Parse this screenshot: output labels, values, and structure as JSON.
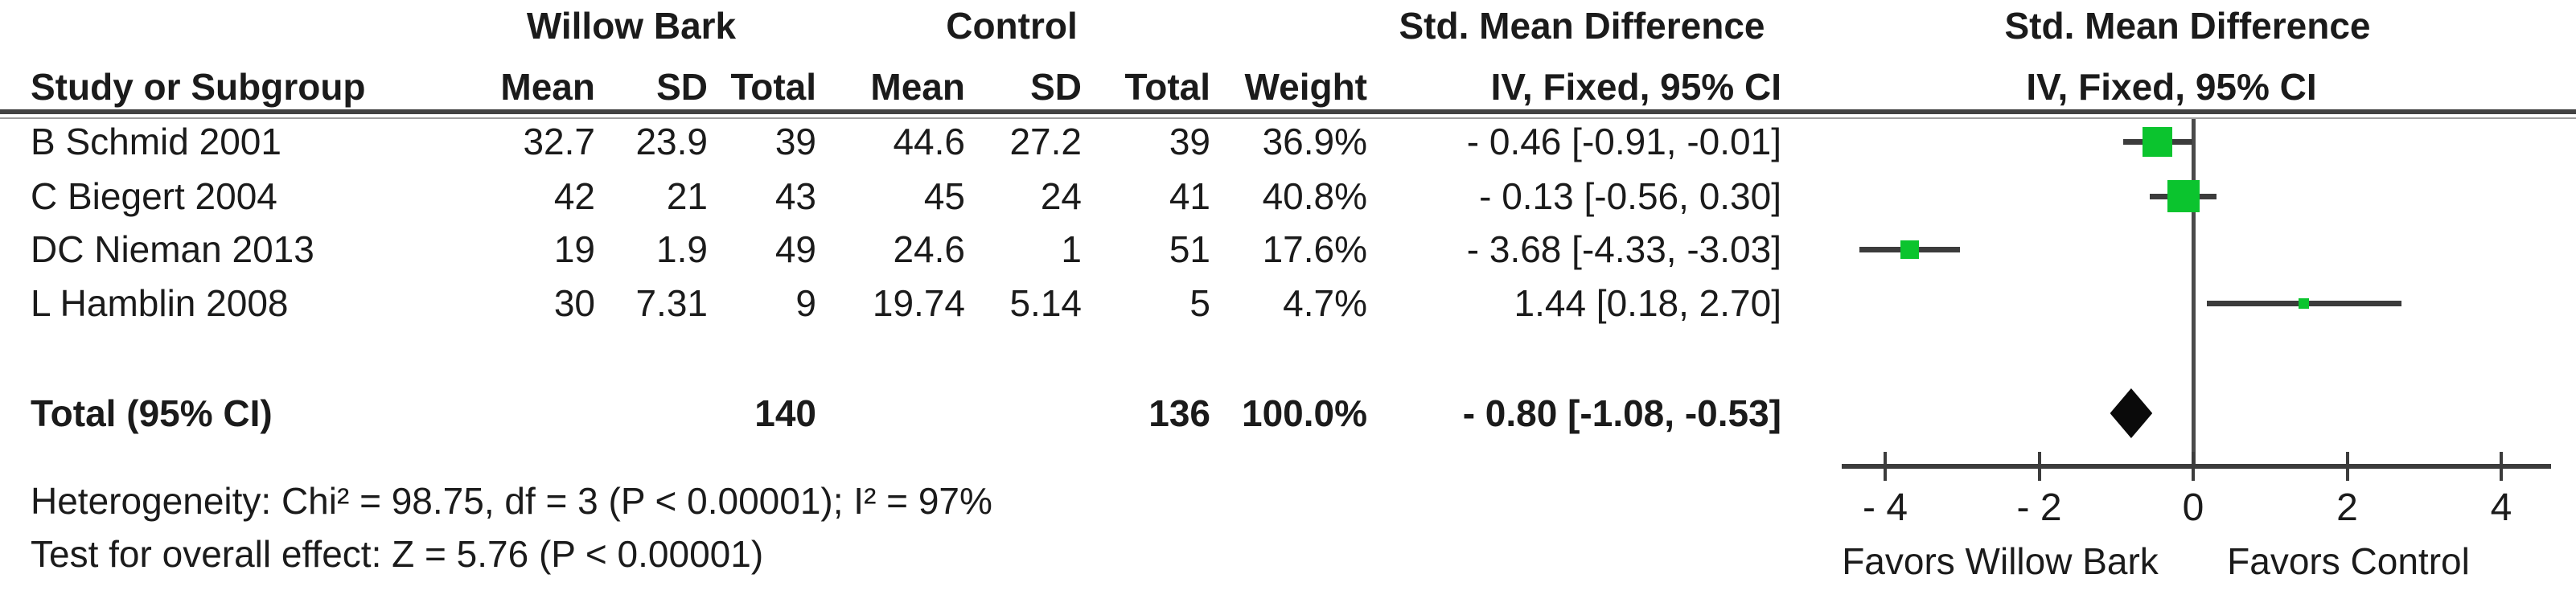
{
  "colors": {
    "effect_square": "#0bc42e",
    "line": "#3c3c3c",
    "zero_line": "#4a4a4a",
    "diamond": "#0a0a0a",
    "text": "#1b1b1b"
  },
  "chart_data": {
    "type": "forest",
    "headers": {
      "group_treatment": "Willow Bark",
      "group_control": "Control",
      "smd_text_col": "Std. Mean Difference",
      "smd_plot_col": "Std. Mean Difference",
      "study": "Study or Subgroup",
      "mean": "Mean",
      "sd": "SD",
      "total": "Total",
      "weight": "Weight",
      "ci_method_text_col": "IV, Fixed, 95% CI",
      "ci_method_plot_col": "IV, Fixed, 95% CI"
    },
    "studies": [
      {
        "label": "B Schmid 2001",
        "mean_t": "32.7",
        "sd_t": "23.9",
        "total_t": "39",
        "mean_c": "44.6",
        "sd_c": "27.2",
        "total_c": "39",
        "weight": "36.9%",
        "weight_pct": 36.9,
        "smd": -0.46,
        "ci_lo": -0.91,
        "ci_hi": -0.01,
        "ci_text": "- 0.46 [-0.91, -0.01]"
      },
      {
        "label": "C Biegert 2004",
        "mean_t": "42",
        "sd_t": "21",
        "total_t": "43",
        "mean_c": "45",
        "sd_c": "24",
        "total_c": "41",
        "weight": "40.8%",
        "weight_pct": 40.8,
        "smd": -0.13,
        "ci_lo": -0.56,
        "ci_hi": 0.3,
        "ci_text": "- 0.13 [-0.56, 0.30]"
      },
      {
        "label": "DC Nieman 2013",
        "mean_t": "19",
        "sd_t": "1.9",
        "total_t": "49",
        "mean_c": "24.6",
        "sd_c": "1",
        "total_c": "51",
        "weight": "17.6%",
        "weight_pct": 17.6,
        "smd": -3.68,
        "ci_lo": -4.33,
        "ci_hi": -3.03,
        "ci_text": "- 3.68 [-4.33, -3.03]"
      },
      {
        "label": "L Hamblin 2008",
        "mean_t": "30",
        "sd_t": "7.31",
        "total_t": "9",
        "mean_c": "19.74",
        "sd_c": "5.14",
        "total_c": "5",
        "weight": "4.7%",
        "weight_pct": 4.7,
        "smd": 1.44,
        "ci_lo": 0.18,
        "ci_hi": 2.7,
        "ci_text": "1.44 [0.18, 2.70]"
      }
    ],
    "total": {
      "label": "Total (95% CI)",
      "total_t": "140",
      "total_c": "136",
      "weight": "100.0%",
      "smd": -0.8,
      "ci_lo": -1.08,
      "ci_hi": -0.53,
      "ci_text": "- 0.80 [-1.08, -0.53]"
    },
    "axis": {
      "ticks": [
        -4,
        -2,
        0,
        2,
        4
      ],
      "tick_labels": [
        "- 4",
        "- 2",
        "0",
        "2",
        "4"
      ],
      "xmin": -4.56,
      "xmax": 4.65,
      "left_label": "Favors Willow Bark",
      "right_label": "Favors Control"
    },
    "footnotes": {
      "heterogeneity": "Heterogeneity: Chi² = 98.75, df = 3 (P < 0.00001); I² = 97%",
      "overall_effect": "Test for overall effect: Z = 5.76 (P < 0.00001)"
    }
  }
}
